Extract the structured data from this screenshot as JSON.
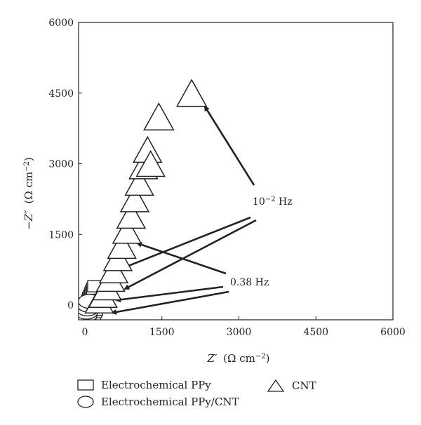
{
  "chart_data": {
    "type": "scatter",
    "xlabel_main": "Z′",
    "xlabel_unit": "(Ω cm",
    "xlabel_exp": "−2",
    "xlabel_close": ")",
    "ylabel_main": "−Z″",
    "ylabel_unit": "(Ω cm",
    "ylabel_exp": "−2",
    "ylabel_close": ")",
    "xlim": [
      0,
      6000
    ],
    "ylim": [
      0,
      6000
    ],
    "xticks": [
      0,
      1500,
      3000,
      4500,
      6000
    ],
    "yticks": [
      0,
      1500,
      3000,
      4500,
      6000
    ],
    "xtick_labels": [
      "0",
      "1500",
      "3000",
      "4500",
      "6000"
    ],
    "ytick_labels": [
      "0",
      "1500",
      "3000",
      "4500",
      "6000"
    ],
    "series": [
      {
        "name": "Electrochemical PPy",
        "marker": "square",
        "x": [
          20,
          40,
          60,
          80,
          100,
          120,
          140,
          160,
          180,
          200,
          220,
          240,
          260,
          280,
          300
        ],
        "y": [
          -300,
          -250,
          -200,
          -150,
          -100,
          -50,
          0,
          50,
          100,
          150,
          200,
          250,
          300,
          350,
          400
        ]
      },
      {
        "name": "Electrochemical PPy/CNT",
        "marker": "circle",
        "x": [
          0,
          15,
          30,
          50,
          70,
          90
        ],
        "y": [
          -280,
          -220,
          -150,
          -80,
          0,
          80
        ]
      },
      {
        "name": "CNT",
        "marker": "triangle",
        "x": [
          280,
          350,
          430,
          500,
          560,
          640,
          720,
          820,
          900,
          970,
          1060,
          1140,
          1220,
          1280,
          1440,
          2080
        ],
        "y": [
          100,
          220,
          380,
          560,
          740,
          1000,
          1260,
          1580,
          1900,
          2250,
          2600,
          2950,
          3300,
          3000,
          4000,
          4500
        ]
      }
    ],
    "annotations": [
      {
        "text_main": "10",
        "text_exp": "−2",
        "text_unit": " Hz"
      },
      {
        "text_main": "0.38 Hz",
        "text_exp": "",
        "text_unit": ""
      }
    ]
  }
}
